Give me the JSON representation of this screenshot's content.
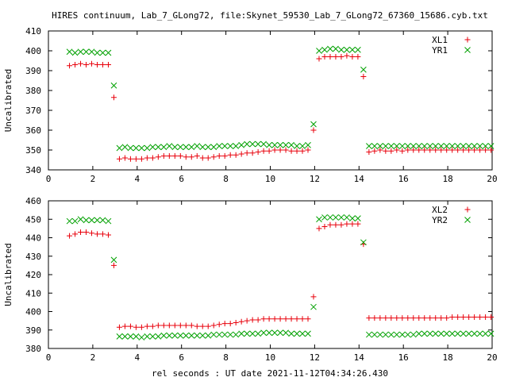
{
  "title": "HIRES continuum, Lab_7_GLong72, file:Skynet_59530_Lab_7_GLong72_67360_15686.cyb.txt",
  "xlabel": "rel seconds : UT date 2021-11-12T04:34:26.430",
  "colors": {
    "red": "#e8000b",
    "green": "#00a000"
  },
  "chart_data": [
    {
      "type": "scatter",
      "ylabel": "Uncalibrated",
      "xlim": [
        0,
        20
      ],
      "ylim": [
        340,
        410
      ],
      "xticks": [
        0,
        2,
        4,
        6,
        8,
        10,
        12,
        14,
        16,
        18,
        20
      ],
      "yticks": [
        340,
        350,
        360,
        370,
        380,
        390,
        400,
        410
      ],
      "legend_position": "top-right",
      "series": [
        {
          "name": "XL1",
          "marker": "plus",
          "color": "#e8000b",
          "x": [
            0.95,
            1.2,
            1.45,
            1.7,
            1.95,
            2.2,
            2.45,
            2.7,
            2.95,
            3.2,
            3.45,
            3.7,
            3.95,
            4.2,
            4.45,
            4.7,
            4.95,
            5.2,
            5.45,
            5.7,
            5.95,
            6.2,
            6.45,
            6.7,
            6.95,
            7.2,
            7.45,
            7.7,
            7.95,
            8.2,
            8.45,
            8.7,
            8.95,
            9.2,
            9.45,
            9.7,
            9.95,
            10.2,
            10.45,
            10.7,
            10.95,
            11.2,
            11.45,
            11.7,
            11.95,
            12.2,
            12.45,
            12.7,
            12.95,
            13.2,
            13.45,
            13.7,
            13.95,
            14.2,
            14.45,
            14.7,
            14.95,
            15.2,
            15.45,
            15.7,
            15.95,
            16.2,
            16.45,
            16.7,
            16.95,
            17.2,
            17.45,
            17.7,
            17.95,
            18.2,
            18.45,
            18.7,
            18.95,
            19.2,
            19.45,
            19.7,
            19.95
          ],
          "y": [
            392.5,
            393,
            393.5,
            393,
            393.5,
            393,
            393,
            393,
            376.5,
            345.5,
            346,
            345.5,
            345.5,
            345.5,
            346,
            346,
            346.5,
            347,
            347,
            347,
            347,
            346.5,
            346.5,
            347,
            346,
            346,
            346.5,
            347,
            347,
            347.5,
            347.5,
            348,
            348.5,
            348.5,
            349,
            349.5,
            349.5,
            350,
            350,
            350,
            349.5,
            349.5,
            349.5,
            350,
            360,
            396,
            397,
            397,
            397,
            397,
            397.5,
            397,
            397,
            387,
            349,
            349.5,
            350,
            349.5,
            349.5,
            350,
            349.5,
            350,
            350,
            350,
            350,
            350,
            350,
            350,
            350,
            350,
            350,
            350,
            350,
            350,
            350,
            350,
            350
          ]
        },
        {
          "name": "YR1",
          "marker": "cross",
          "color": "#00a000",
          "x": [
            0.95,
            1.2,
            1.45,
            1.7,
            1.95,
            2.2,
            2.45,
            2.7,
            2.95,
            3.2,
            3.45,
            3.7,
            3.95,
            4.2,
            4.45,
            4.7,
            4.95,
            5.2,
            5.45,
            5.7,
            5.95,
            6.2,
            6.45,
            6.7,
            6.95,
            7.2,
            7.45,
            7.7,
            7.95,
            8.2,
            8.45,
            8.7,
            8.95,
            9.2,
            9.45,
            9.7,
            9.95,
            10.2,
            10.45,
            10.7,
            10.95,
            11.2,
            11.45,
            11.7,
            11.95,
            12.2,
            12.45,
            12.7,
            12.95,
            13.2,
            13.45,
            13.7,
            13.95,
            14.2,
            14.45,
            14.7,
            14.95,
            15.2,
            15.45,
            15.7,
            15.95,
            16.2,
            16.45,
            16.7,
            16.95,
            17.2,
            17.45,
            17.7,
            17.95,
            18.2,
            18.45,
            18.7,
            18.95,
            19.2,
            19.45,
            19.7,
            19.95
          ],
          "y": [
            399.5,
            399,
            399.5,
            399.5,
            399.5,
            399,
            399,
            399,
            382.5,
            351,
            351.5,
            351,
            351,
            351,
            351,
            351.5,
            351.5,
            351.5,
            352,
            351.5,
            351.5,
            351.5,
            351.5,
            352,
            351.5,
            351.5,
            351.5,
            352,
            352,
            352,
            352,
            352.5,
            353,
            353,
            353,
            353,
            352.5,
            352.5,
            352.5,
            352.5,
            352.5,
            352,
            352,
            352.5,
            363,
            400,
            400.5,
            401,
            401,
            400.5,
            400.5,
            400.5,
            400.5,
            390.5,
            352,
            352,
            352,
            352,
            352,
            352,
            352,
            352,
            352,
            352,
            352,
            352,
            352,
            352,
            352,
            352,
            352,
            352,
            352,
            352,
            352,
            352,
            352
          ]
        }
      ]
    },
    {
      "type": "scatter",
      "ylabel": "Uncalibrated",
      "xlim": [
        0,
        20
      ],
      "ylim": [
        380,
        460
      ],
      "xticks": [
        0,
        2,
        4,
        6,
        8,
        10,
        12,
        14,
        16,
        18,
        20
      ],
      "yticks": [
        380,
        390,
        400,
        410,
        420,
        430,
        440,
        450,
        460
      ],
      "legend_position": "top-right",
      "series": [
        {
          "name": "XL2",
          "marker": "plus",
          "color": "#e8000b",
          "x": [
            0.95,
            1.2,
            1.45,
            1.7,
            1.95,
            2.2,
            2.45,
            2.7,
            2.95,
            3.2,
            3.45,
            3.7,
            3.95,
            4.2,
            4.45,
            4.7,
            4.95,
            5.2,
            5.45,
            5.7,
            5.95,
            6.2,
            6.45,
            6.7,
            6.95,
            7.2,
            7.45,
            7.7,
            7.95,
            8.2,
            8.45,
            8.7,
            8.95,
            9.2,
            9.45,
            9.7,
            9.95,
            10.2,
            10.45,
            10.7,
            10.95,
            11.2,
            11.45,
            11.7,
            11.95,
            12.2,
            12.45,
            12.7,
            12.95,
            13.2,
            13.45,
            13.7,
            13.95,
            14.2,
            14.45,
            14.7,
            14.95,
            15.2,
            15.45,
            15.7,
            15.95,
            16.2,
            16.45,
            16.7,
            16.95,
            17.2,
            17.45,
            17.7,
            17.95,
            18.2,
            18.45,
            18.7,
            18.95,
            19.2,
            19.45,
            19.7,
            19.95
          ],
          "y": [
            441,
            442,
            443,
            443,
            442.5,
            442,
            442,
            441.5,
            425,
            391.5,
            392,
            392,
            391.5,
            391.5,
            392,
            392,
            392.5,
            392.5,
            392.5,
            392.5,
            392.5,
            392.5,
            392.5,
            392,
            392,
            392,
            392.5,
            393,
            393.5,
            393.5,
            394,
            394.5,
            395,
            395.5,
            395.5,
            396,
            396,
            396,
            396,
            396,
            396,
            396,
            396,
            396,
            408,
            445,
            446,
            447,
            447,
            447,
            447.5,
            447.5,
            447.5,
            436.5,
            396.5,
            396.5,
            396.5,
            396.5,
            396.5,
            396.5,
            396.5,
            396.5,
            396.5,
            396.5,
            396.5,
            396.5,
            396.5,
            396.5,
            396.5,
            397,
            397,
            397,
            397,
            397,
            397,
            397,
            397
          ]
        },
        {
          "name": "YR2",
          "marker": "cross",
          "color": "#00a000",
          "x": [
            0.95,
            1.2,
            1.45,
            1.7,
            1.95,
            2.2,
            2.45,
            2.7,
            2.95,
            3.2,
            3.45,
            3.7,
            3.95,
            4.2,
            4.45,
            4.7,
            4.95,
            5.2,
            5.45,
            5.7,
            5.95,
            6.2,
            6.45,
            6.7,
            6.95,
            7.2,
            7.45,
            7.7,
            7.95,
            8.2,
            8.45,
            8.7,
            8.95,
            9.2,
            9.45,
            9.7,
            9.95,
            10.2,
            10.45,
            10.7,
            10.95,
            11.2,
            11.45,
            11.7,
            11.95,
            12.2,
            12.45,
            12.7,
            12.95,
            13.2,
            13.45,
            13.7,
            13.95,
            14.2,
            14.45,
            14.7,
            14.95,
            15.2,
            15.45,
            15.7,
            15.95,
            16.2,
            16.45,
            16.7,
            16.95,
            17.2,
            17.45,
            17.7,
            17.95,
            18.2,
            18.45,
            18.7,
            18.95,
            19.2,
            19.45,
            19.7,
            19.95
          ],
          "y": [
            449,
            449,
            450,
            449.5,
            449.5,
            449.5,
            449.5,
            449,
            428,
            386.5,
            386.5,
            386.5,
            386.5,
            386,
            386.5,
            386.5,
            386.5,
            387,
            387,
            387,
            387,
            387,
            387,
            387,
            387,
            387,
            387.5,
            387.5,
            387.5,
            387.5,
            387.5,
            388,
            388,
            388,
            388,
            388.5,
            388.5,
            388.5,
            388.5,
            388.5,
            388,
            388,
            388,
            388,
            402.5,
            450,
            451,
            451,
            451,
            451,
            451,
            450.5,
            450.5,
            437.5,
            387.5,
            387.5,
            387.5,
            387.5,
            387.5,
            387.5,
            387.5,
            387.5,
            387.5,
            388,
            388,
            388,
            388,
            388,
            388,
            388,
            388,
            388,
            388,
            388,
            388,
            388,
            388
          ]
        }
      ]
    }
  ]
}
